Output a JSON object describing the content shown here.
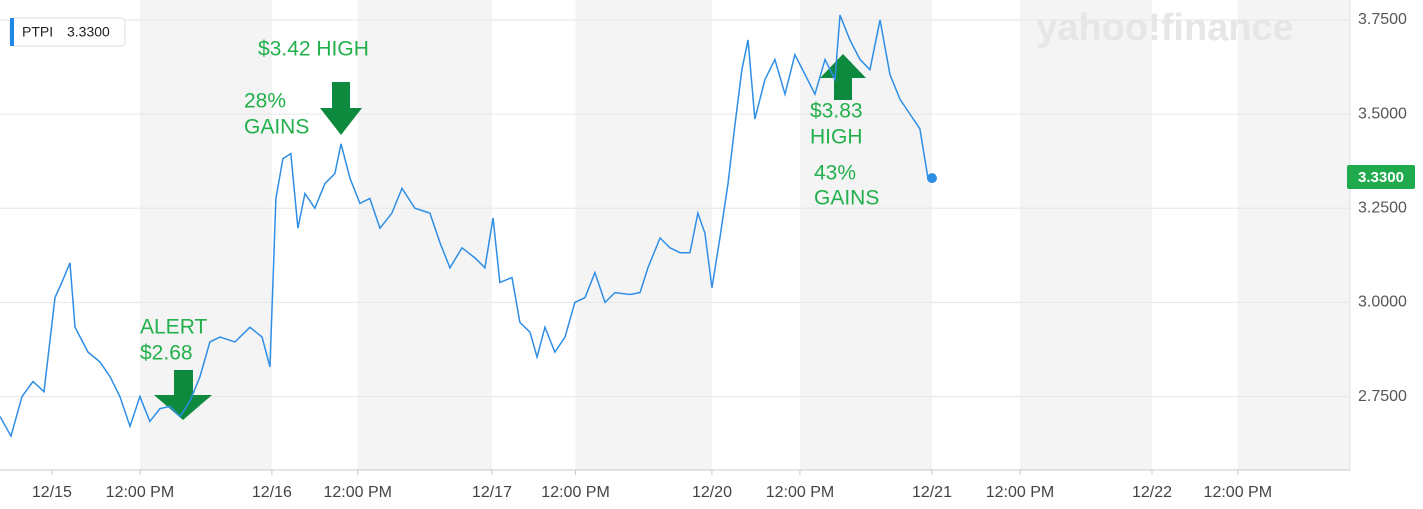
{
  "chart_data": {
    "type": "line",
    "ticker": "PTPI",
    "price_label": "3.3300",
    "watermark": "yahoo!finance",
    "annotations": [
      "$3.42 HIGH",
      "28%",
      "GAINS",
      "ALERT",
      "$2.68",
      "$3.83",
      "HIGH",
      "43%",
      "GAINS"
    ],
    "series": [
      {
        "color": "#2e8ee6",
        "x": [
          -0.236,
          -0.186,
          -0.136,
          -0.086,
          -0.036,
          0.014,
          0.045,
          0.082,
          0.105,
          0.164,
          0.218,
          0.264,
          0.309,
          0.355,
          0.4,
          0.445,
          0.491,
          0.536,
          0.582,
          0.627,
          0.673,
          0.718,
          0.764,
          0.832,
          0.9,
          0.955,
          0.991,
          1.018,
          1.05,
          1.086,
          1.118,
          1.15,
          1.195,
          1.241,
          1.286,
          1.314,
          1.355,
          1.4,
          1.445,
          1.491,
          1.545,
          1.591,
          1.65,
          1.718,
          1.764,
          1.809,
          1.864,
          1.923,
          1.968,
          2.005,
          2.036,
          2.091,
          2.127,
          2.173,
          2.205,
          2.241,
          2.286,
          2.332,
          2.377,
          2.423,
          2.468,
          2.514,
          2.559,
          2.627,
          2.673,
          2.709,
          2.764,
          2.809,
          2.855,
          2.9,
          2.936,
          2.968,
          3.0,
          3.036,
          3.073,
          3.105,
          3.136,
          3.164,
          3.195,
          3.241,
          3.286,
          3.332,
          3.377,
          3.423,
          3.468,
          3.514,
          3.559,
          3.582,
          3.627,
          3.673,
          3.718,
          3.764,
          3.809,
          3.855,
          3.9,
          3.945,
          3.982,
          4.0
        ],
        "values": [
          2.697,
          2.645,
          2.75,
          2.79,
          2.763,
          3.013,
          3.053,
          3.105,
          2.934,
          2.868,
          2.842,
          2.803,
          2.75,
          2.671,
          2.75,
          2.684,
          2.718,
          2.724,
          2.697,
          2.737,
          2.803,
          2.895,
          2.908,
          2.895,
          2.934,
          2.908,
          2.829,
          3.276,
          3.382,
          3.395,
          3.197,
          3.289,
          3.25,
          3.316,
          3.342,
          3.421,
          3.329,
          3.263,
          3.276,
          3.197,
          3.237,
          3.303,
          3.25,
          3.237,
          3.158,
          3.092,
          3.145,
          3.118,
          3.092,
          3.224,
          3.053,
          3.066,
          2.947,
          2.921,
          2.855,
          2.934,
          2.868,
          2.908,
          3.0,
          3.013,
          3.079,
          3.0,
          3.026,
          3.021,
          3.026,
          3.092,
          3.171,
          3.145,
          3.132,
          3.132,
          3.237,
          3.184,
          3.039,
          3.171,
          3.316,
          3.474,
          3.618,
          3.697,
          3.487,
          3.592,
          3.645,
          3.553,
          3.658,
          3.605,
          3.553,
          3.645,
          3.592,
          3.763,
          3.697,
          3.645,
          3.618,
          3.75,
          3.605,
          3.539,
          3.5,
          3.461,
          3.329,
          3.33
        ]
      }
    ],
    "xlim": [
      -0.236,
      5.9
    ],
    "xticks": [
      {
        "value": 0,
        "label": "12/15"
      },
      {
        "value": 0.4,
        "label": "12:00 PM"
      },
      {
        "value": 1,
        "label": "12/16"
      },
      {
        "value": 1.39,
        "label": "12:00 PM"
      },
      {
        "value": 2,
        "label": "12/17"
      },
      {
        "value": 2.38,
        "label": "12:00 PM"
      },
      {
        "value": 3,
        "label": "12/20"
      },
      {
        "value": 3.4,
        "label": "12:00 PM"
      },
      {
        "value": 4,
        "label": "12/21"
      },
      {
        "value": 4.4,
        "label": "12:00 PM"
      },
      {
        "value": 5,
        "label": "12/22"
      },
      {
        "value": 5.39,
        "label": "12:00 PM"
      }
    ],
    "ylim": [
      2.555,
      3.803
    ],
    "yticks": [
      {
        "value": 2.75,
        "label": "2.7500"
      },
      {
        "value": 3.0,
        "label": "3.0000"
      },
      {
        "value": 3.25,
        "label": "3.2500"
      },
      {
        "value": 3.5,
        "label": "3.5000"
      },
      {
        "value": 3.75,
        "label": "3.7500"
      }
    ],
    "grid": true
  }
}
